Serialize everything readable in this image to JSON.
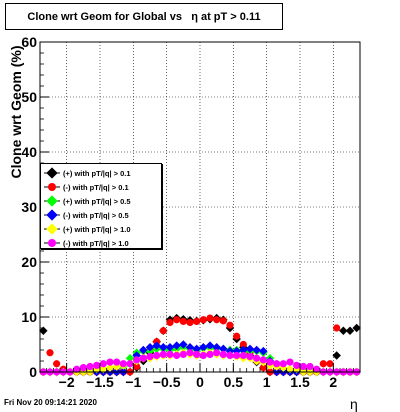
{
  "title": "Clone wrt Geom for Global vs   η at pT > 0.11",
  "timestamp": "Fri Nov 20 09:14:21 2020",
  "chart_data": {
    "type": "scatter",
    "xlabel": "η",
    "ylabel": "Clone wrt Geom (%)",
    "xlim": [
      -2.4,
      2.4
    ],
    "ylim": [
      0,
      60
    ],
    "xticks": [
      -2,
      -1.5,
      -1,
      -0.5,
      0,
      0.5,
      1,
      1.5,
      2
    ],
    "xtick_labels": [
      "−2",
      "−1.5",
      "−1",
      "−0.5",
      "0",
      "0.5",
      "1",
      "1.5",
      "2"
    ],
    "yticks": [
      0,
      10,
      20,
      30,
      40,
      50,
      60
    ],
    "ytick_labels": [
      "0",
      "10",
      "20",
      "30",
      "40",
      "50",
      "60"
    ],
    "grid": true,
    "legend_position": "middle-left",
    "x": [
      -2.35,
      -2.25,
      -2.15,
      -2.05,
      -1.95,
      -1.85,
      -1.75,
      -1.65,
      -1.55,
      -1.45,
      -1.35,
      -1.25,
      -1.15,
      -1.05,
      -0.95,
      -0.85,
      -0.75,
      -0.65,
      -0.55,
      -0.45,
      -0.35,
      -0.25,
      -0.15,
      -0.05,
      0.05,
      0.15,
      0.25,
      0.35,
      0.45,
      0.55,
      0.65,
      0.75,
      0.85,
      0.95,
      1.05,
      1.15,
      1.25,
      1.35,
      1.45,
      1.55,
      1.65,
      1.75,
      1.85,
      1.95,
      2.05,
      2.15,
      2.25,
      2.35
    ],
    "series": [
      {
        "name": "(+) with pT/|q| > 0.1",
        "color": "#000000",
        "values": [
          7.5,
          0,
          0,
          0,
          0,
          0,
          0,
          0,
          0,
          0,
          0,
          0,
          0,
          0,
          0.8,
          2,
          3.5,
          5.5,
          7.5,
          9.5,
          9.8,
          9.6,
          9.4,
          9.3,
          9.4,
          9.6,
          9.8,
          9.5,
          8,
          6,
          4.5,
          3,
          1.8,
          0.8,
          0,
          0,
          0,
          0,
          0,
          0,
          0,
          0,
          0,
          0,
          3,
          7.5,
          7.5,
          8
        ]
      },
      {
        "name": "(-) with pT/|q| > 0.1",
        "color": "#ff0000",
        "values": [
          0,
          3.5,
          1.5,
          0.5,
          0,
          0,
          0,
          0,
          0,
          0,
          0,
          0,
          0,
          0,
          1,
          2.5,
          4,
          5.5,
          7.5,
          9,
          9.5,
          9.2,
          9,
          9.2,
          9.5,
          9.8,
          9.5,
          9.3,
          8.5,
          6.5,
          5,
          3.5,
          2,
          0.8,
          0,
          0,
          0,
          0,
          0,
          0,
          0,
          0,
          1.5,
          1.5,
          8,
          0,
          0,
          0
        ]
      },
      {
        "name": "(+) with pT/|q| > 0.5",
        "color": "#00ff00",
        "values": [
          0,
          0,
          0,
          0,
          0,
          0,
          0,
          0,
          0,
          0,
          0,
          0,
          1,
          2.5,
          3.5,
          3.8,
          3.8,
          4.2,
          4.2,
          4,
          4.2,
          4.5,
          4.2,
          4,
          4.3,
          4.4,
          4.2,
          4.2,
          4,
          4,
          3.8,
          3.8,
          3.8,
          3.5,
          2.5,
          1,
          0,
          0,
          0,
          0,
          0,
          0,
          0,
          0,
          0,
          0,
          0,
          0
        ]
      },
      {
        "name": "(-) with pT/|q| > 0.5",
        "color": "#0000ff",
        "values": [
          0,
          0,
          0,
          0,
          0,
          0,
          0,
          0,
          0,
          0,
          0,
          0,
          0,
          1.5,
          3,
          4,
          4.5,
          4.8,
          4.5,
          4.5,
          4.8,
          5,
          4.5,
          4.2,
          4.5,
          4.8,
          4.5,
          4.2,
          3.8,
          3.8,
          4,
          4.2,
          4,
          3.8,
          2,
          0,
          0,
          0,
          0,
          0,
          0,
          0,
          0,
          0,
          0,
          0,
          0,
          0
        ]
      },
      {
        "name": "(+) with pT/|q| > 1.0",
        "color": "#ffff00",
        "values": [
          0,
          0,
          0,
          0,
          0,
          0,
          0,
          0,
          0.5,
          0.5,
          0.8,
          1,
          1.2,
          1.5,
          2,
          2.5,
          2.5,
          2.8,
          3,
          3,
          3.2,
          3.5,
          3.2,
          3,
          3.2,
          3.5,
          3.2,
          3,
          3,
          2.8,
          2.5,
          2.5,
          2,
          1.8,
          1.2,
          1,
          0.8,
          0.5,
          0.5,
          0,
          0,
          0,
          0,
          0,
          0,
          0,
          0,
          0
        ]
      },
      {
        "name": "(-) with pT/|q| > 1.0",
        "color": "#ff00ff",
        "values": [
          0,
          0,
          0,
          0,
          0,
          0.5,
          0.8,
          1,
          1.2,
          1.5,
          1.8,
          1.8,
          1.5,
          1.5,
          2.2,
          2.5,
          2.8,
          3,
          3.2,
          3.2,
          3,
          3.2,
          3.5,
          3.2,
          3,
          3.2,
          3.5,
          3.2,
          3,
          3,
          3,
          2.8,
          2.5,
          2.2,
          1.8,
          1.5,
          1.5,
          1.8,
          1.2,
          1,
          1,
          0.5,
          0,
          0,
          0,
          0,
          0,
          0
        ]
      }
    ]
  }
}
